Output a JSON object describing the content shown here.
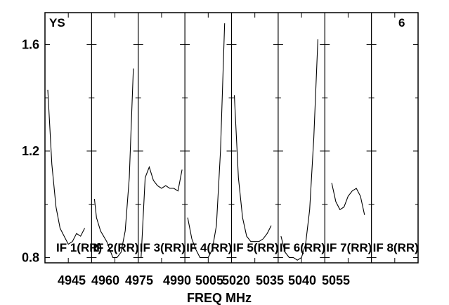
{
  "chart_data": {
    "type": "line",
    "title_left": "YS",
    "title_right": "6",
    "xlabel": "FREQ MHz",
    "ylabel": "",
    "ylim": [
      0.78,
      1.72
    ],
    "y_ticks": [
      0.8,
      1.2,
      1.6
    ],
    "y_tick_labels": [
      "0.8",
      "1.2",
      "1.6"
    ],
    "x_tick_labels": [
      "4945",
      "4960",
      "4975",
      "4990",
      "5005",
      "5020",
      "5035",
      "5040",
      "5055"
    ],
    "grid": false,
    "legend": "none",
    "panels": [
      {
        "name": "IF 1(RR)",
        "x": [
          0.0,
          0.1,
          0.2,
          0.3,
          0.4,
          0.5,
          0.6,
          0.7,
          0.8,
          0.9
        ],
        "values": [
          1.43,
          1.15,
          0.99,
          0.91,
          0.88,
          0.85,
          0.86,
          0.89,
          0.88,
          0.91
        ]
      },
      {
        "name": "IF 2(RR)",
        "x": [
          0.0,
          0.05,
          0.15,
          0.3,
          0.45,
          0.55,
          0.65,
          0.75,
          0.85,
          0.95
        ],
        "values": [
          1.02,
          0.95,
          0.9,
          0.86,
          0.8,
          0.8,
          0.82,
          0.9,
          1.1,
          1.51
        ]
      },
      {
        "name": "IF 3(RR)",
        "x": [
          0.0,
          0.1,
          0.2,
          0.3,
          0.4,
          0.5,
          0.6,
          0.7,
          0.8,
          0.9,
          1.0
        ],
        "values": [
          0.8,
          1.1,
          1.14,
          1.09,
          1.07,
          1.06,
          1.07,
          1.06,
          1.06,
          1.05,
          1.13
        ]
      },
      {
        "name": "IF 4(RR)",
        "x": [
          0.0,
          0.1,
          0.2,
          0.3,
          0.4,
          0.5,
          0.6,
          0.7,
          0.8,
          0.9
        ],
        "values": [
          0.95,
          0.87,
          0.83,
          0.8,
          0.8,
          0.8,
          0.83,
          0.92,
          1.2,
          1.68
        ]
      },
      {
        "name": "IF 5(RR)",
        "x": [
          0.0,
          0.1,
          0.2,
          0.3,
          0.4,
          0.5,
          0.6,
          0.7,
          0.8,
          0.9
        ],
        "values": [
          1.41,
          1.1,
          0.95,
          0.88,
          0.86,
          0.86,
          0.86,
          0.87,
          0.89,
          0.92
        ]
      },
      {
        "name": "IF 6(RR)",
        "x": [
          0.0,
          0.1,
          0.2,
          0.3,
          0.4,
          0.5,
          0.6,
          0.7,
          0.8,
          0.9
        ],
        "values": [
          0.88,
          0.82,
          0.8,
          0.8,
          0.79,
          0.8,
          0.85,
          0.98,
          1.25,
          1.62
        ]
      },
      {
        "name": "IF 7(RR)",
        "x": [
          0.1,
          0.2,
          0.3,
          0.4,
          0.5,
          0.6,
          0.7,
          0.8,
          0.9
        ],
        "values": [
          1.08,
          1.01,
          0.98,
          0.99,
          1.03,
          1.05,
          1.06,
          1.03,
          0.96
        ]
      },
      {
        "name": "IF 8(RR)",
        "x": [],
        "values": []
      }
    ]
  }
}
